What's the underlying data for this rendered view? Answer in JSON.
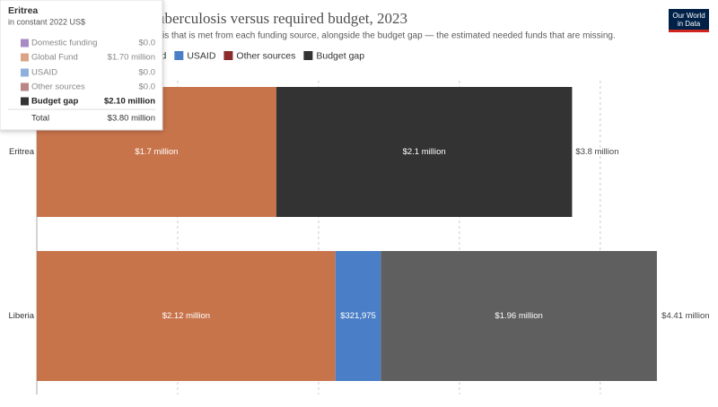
{
  "chart_data": {
    "type": "stacked-barh",
    "title": "uberculosis versus required budget, 2023",
    "subtitle": "is that is met from each funding source, alongside the budget gap — the estimated needed funds that are missing.",
    "categories": [
      "Eritrea",
      "Liberia"
    ],
    "series": [
      {
        "name": "Domestic funding",
        "color": "#6d3e91",
        "values": [
          0,
          0
        ],
        "value_labels": [
          null,
          null
        ]
      },
      {
        "name": "Global Fund",
        "color": "#c8744b",
        "values": [
          1700000,
          2120000
        ],
        "value_labels": [
          "$1.7 million",
          "$2.12 million"
        ]
      },
      {
        "name": "USAID",
        "color": "#4a7fc7",
        "values": [
          0,
          321975
        ],
        "value_labels": [
          null,
          "$321,975"
        ]
      },
      {
        "name": "Other sources",
        "color": "#8c2b2b",
        "values": [
          0,
          0
        ],
        "value_labels": [
          null,
          null
        ]
      },
      {
        "name": "Budget gap",
        "color": "#333333",
        "colors": [
          "#333333",
          "#5f5f5f"
        ],
        "values": [
          2100000,
          1960000
        ],
        "value_labels": [
          "$2.1 million",
          "$1.96 million"
        ]
      }
    ],
    "totals": [
      3800000,
      4410000
    ],
    "total_labels": [
      "$3.8 million",
      "$4.41 million"
    ],
    "xlim": [
      0,
      4600000
    ],
    "xticks": [
      0,
      1000000,
      2000000,
      3000000,
      4000000
    ],
    "grid": true
  },
  "logo": [
    "Our World",
    "in Data"
  ],
  "tooltip": {
    "title": "Eritrea",
    "subtitle": "in constant 2022 US$",
    "rows": [
      {
        "name": "Domestic funding",
        "color": "#a88bc3",
        "value": "$0.0"
      },
      {
        "name": "Global Fund",
        "color": "#dba486",
        "value": "$1.70 million"
      },
      {
        "name": "USAID",
        "color": "#8fb0dc",
        "value": "$0.0"
      },
      {
        "name": "Other sources",
        "color": "#b98585",
        "value": "$0.0"
      },
      {
        "name": "Budget gap",
        "color": "#333333",
        "value": "$2.10 million"
      }
    ],
    "total_name": "Total",
    "total_value": "$3.80 million"
  }
}
